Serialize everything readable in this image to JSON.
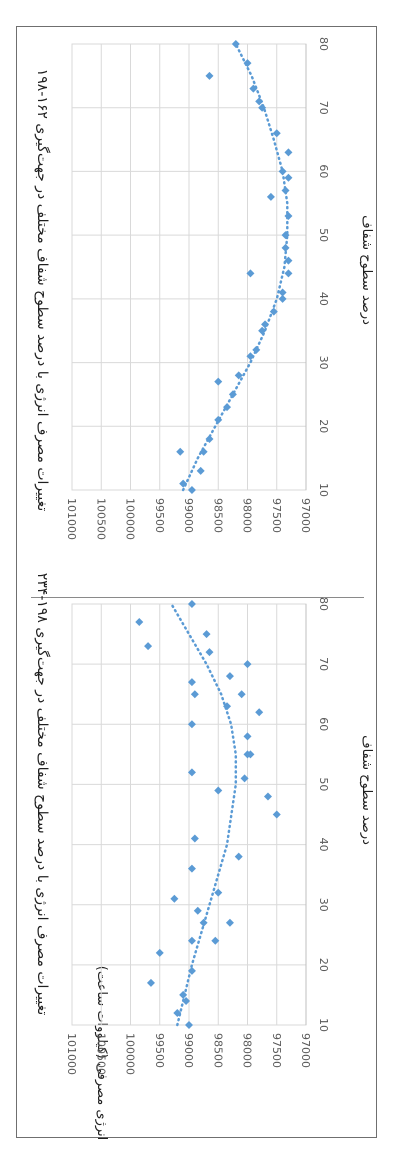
{
  "chart_data": [
    {
      "type": "scatter",
      "title": "تغییرات مصرف انرژی با درصد سطوح شفاف مختلف در جهت‌گیری ۱۹۸-۲۳۴",
      "xlabel": "درصد سطوح شفاف",
      "ylabel": "(کیلووات ساعت) انرژی مصرفی",
      "xlim": [
        10,
        80
      ],
      "ylim": [
        97000,
        101000
      ],
      "x_ticks": [
        "10",
        "20",
        "30",
        "40",
        "50",
        "60",
        "70",
        "80"
      ],
      "y_ticks": [
        "97000",
        "97500",
        "98000",
        "98500",
        "99000",
        "99500",
        "100000",
        "100500",
        "101000"
      ],
      "grid": true,
      "trendline": "polynomial",
      "color": "#5b9bd5",
      "points": [
        [
          10,
          99000
        ],
        [
          12,
          99200
        ],
        [
          14,
          99050
        ],
        [
          15,
          99100
        ],
        [
          17,
          99650
        ],
        [
          19,
          98950
        ],
        [
          22,
          99500
        ],
        [
          24,
          98950
        ],
        [
          24,
          98550
        ],
        [
          27,
          98750
        ],
        [
          27,
          98300
        ],
        [
          29,
          98850
        ],
        [
          31,
          99250
        ],
        [
          32,
          98500
        ],
        [
          36,
          98950
        ],
        [
          38,
          98150
        ],
        [
          41,
          98900
        ],
        [
          45,
          97500
        ],
        [
          48,
          97650
        ],
        [
          49,
          98500
        ],
        [
          51,
          98050
        ],
        [
          52,
          98950
        ],
        [
          55,
          98000
        ],
        [
          55,
          97950
        ],
        [
          58,
          98000
        ],
        [
          60,
          98950
        ],
        [
          62,
          97800
        ],
        [
          63,
          98350
        ],
        [
          65,
          98900
        ],
        [
          65,
          98100
        ],
        [
          67,
          98950
        ],
        [
          68,
          98300
        ],
        [
          70,
          98000
        ],
        [
          72,
          98650
        ],
        [
          73,
          99700
        ],
        [
          75,
          98700
        ],
        [
          77,
          99850
        ],
        [
          80,
          98950
        ]
      ],
      "trend": [
        [
          10,
          99200
        ],
        [
          20,
          98950
        ],
        [
          30,
          98650
        ],
        [
          40,
          98350
        ],
        [
          50,
          98200
        ],
        [
          55,
          98200
        ],
        [
          60,
          98280
        ],
        [
          65,
          98450
        ],
        [
          70,
          98700
        ],
        [
          75,
          99000
        ],
        [
          80,
          99300
        ]
      ]
    },
    {
      "type": "scatter",
      "title": "تغییرات مصرف انرژی با درصد سطوح شفاف مختلف در جهت‌گیری ۱۶۲-۱۹۸",
      "xlabel": "درصد سطوح شفاف",
      "xlim": [
        10,
        80
      ],
      "ylim": [
        97000,
        101000
      ],
      "x_ticks": [
        "10",
        "20",
        "30",
        "40",
        "50",
        "60",
        "70",
        "80"
      ],
      "y_ticks": [
        "97000",
        "97500",
        "98000",
        "98500",
        "99000",
        "99500",
        "100000",
        "100500",
        "101000"
      ],
      "grid": true,
      "trendline": "polynomial",
      "color": "#5b9bd5",
      "points": [
        [
          10,
          98950
        ],
        [
          11,
          99100
        ],
        [
          13,
          98800
        ],
        [
          16,
          99150
        ],
        [
          16,
          98750
        ],
        [
          18,
          98650
        ],
        [
          21,
          98500
        ],
        [
          23,
          98350
        ],
        [
          25,
          98250
        ],
        [
          27,
          98500
        ],
        [
          28,
          98150
        ],
        [
          31,
          97950
        ],
        [
          32,
          97850
        ],
        [
          35,
          97750
        ],
        [
          36,
          97700
        ],
        [
          38,
          97550
        ],
        [
          40,
          97400
        ],
        [
          41,
          97400
        ],
        [
          44,
          97300
        ],
        [
          44,
          97950
        ],
        [
          46,
          97300
        ],
        [
          48,
          97350
        ],
        [
          50,
          97350
        ],
        [
          53,
          97300
        ],
        [
          56,
          97600
        ],
        [
          57,
          97350
        ],
        [
          59,
          97300
        ],
        [
          60,
          97400
        ],
        [
          63,
          97300
        ],
        [
          66,
          97500
        ],
        [
          70,
          97750
        ],
        [
          71,
          97800
        ],
        [
          73,
          97900
        ],
        [
          75,
          98650
        ],
        [
          77,
          98000
        ],
        [
          80,
          98200
        ]
      ],
      "trend": [
        [
          10,
          99100
        ],
        [
          15,
          98850
        ],
        [
          20,
          98550
        ],
        [
          25,
          98250
        ],
        [
          30,
          97950
        ],
        [
          35,
          97700
        ],
        [
          40,
          97500
        ],
        [
          45,
          97370
        ],
        [
          50,
          97320
        ],
        [
          55,
          97320
        ],
        [
          60,
          97400
        ],
        [
          65,
          97550
        ],
        [
          70,
          97720
        ],
        [
          75,
          97930
        ],
        [
          80,
          98200
        ]
      ]
    }
  ]
}
